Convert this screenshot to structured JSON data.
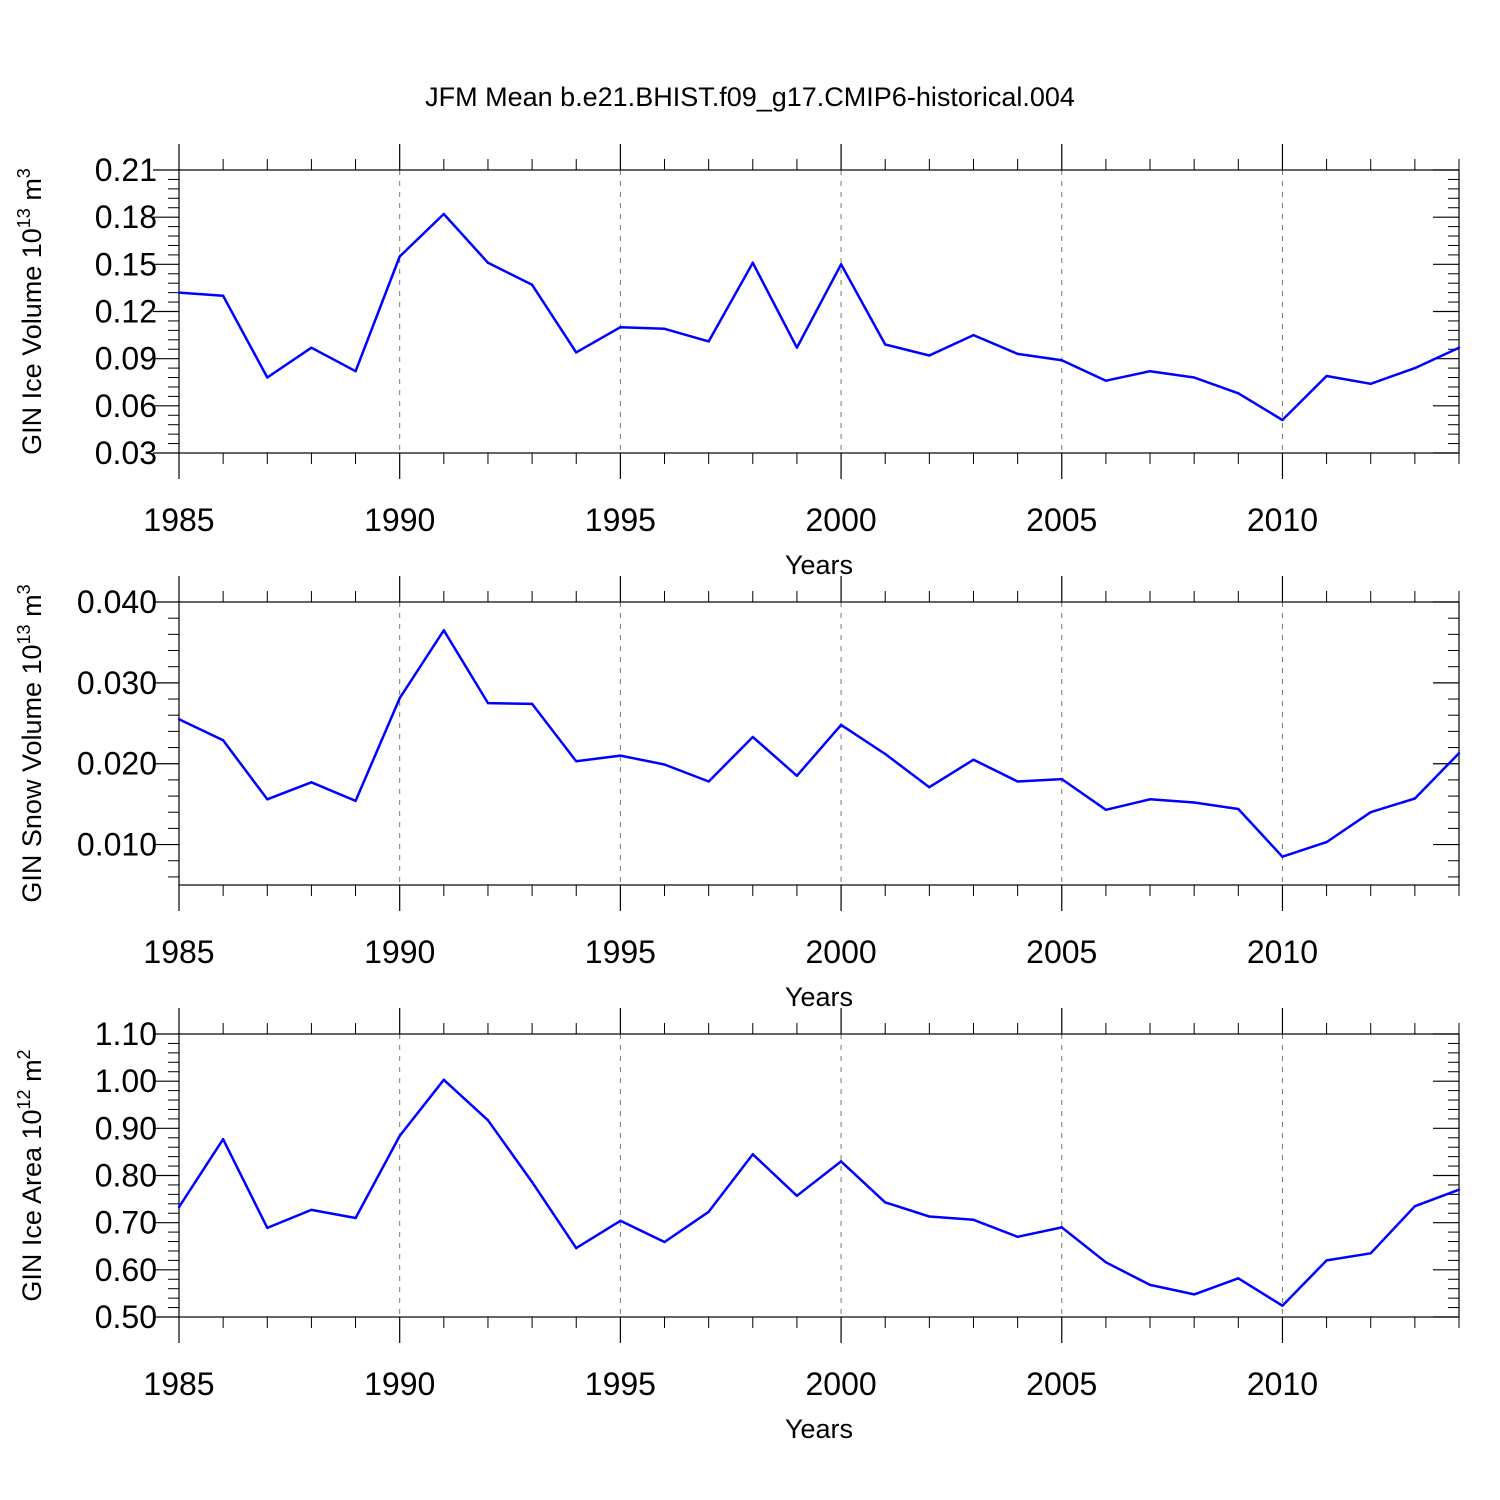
{
  "title": "JFM Mean b.e21.BHIST.f09_g17.CMIP6-historical.004",
  "colors": {
    "series": "#0000ff",
    "grid": "#777777"
  },
  "chart_data": [
    {
      "type": "line",
      "ylabel_main": "GIN Ice Volume 10",
      "ylabel_exp": "13",
      "ylabel_unit": " m",
      "ylabel_unit_exp": "3",
      "xlabel": "Years",
      "xlim": [
        1985,
        2014
      ],
      "ylim": [
        0.03,
        0.21
      ],
      "xticks": [
        1985,
        1990,
        1995,
        2000,
        2005,
        2010
      ],
      "xtick_labels": [
        "1985",
        "1990",
        "1995",
        "2000",
        "2005",
        "2010"
      ],
      "yticks": [
        0.03,
        0.06,
        0.09,
        0.12,
        0.15,
        0.18,
        0.21
      ],
      "ytick_labels": [
        "0.03",
        "0.06",
        "0.09",
        "0.12",
        "0.15",
        "0.18",
        "0.21"
      ],
      "grid_x": true,
      "x": [
        1985,
        1986,
        1987,
        1988,
        1989,
        1990,
        1991,
        1992,
        1993,
        1994,
        1995,
        1996,
        1997,
        1998,
        1999,
        2000,
        2001,
        2002,
        2003,
        2004,
        2005,
        2006,
        2007,
        2008,
        2009,
        2010,
        2011,
        2012,
        2013,
        2014
      ],
      "series": [
        {
          "name": "GIN Ice Volume",
          "values": [
            0.132,
            0.13,
            0.078,
            0.097,
            0.082,
            0.155,
            0.182,
            0.151,
            0.137,
            0.094,
            0.11,
            0.109,
            0.101,
            0.151,
            0.097,
            0.15,
            0.099,
            0.092,
            0.105,
            0.093,
            0.089,
            0.076,
            0.082,
            0.078,
            0.068,
            0.051,
            0.079,
            0.074,
            0.084,
            0.097
          ]
        }
      ]
    },
    {
      "type": "line",
      "ylabel_main": "GIN Snow Volume 10",
      "ylabel_exp": "13",
      "ylabel_unit": " m",
      "ylabel_unit_exp": "3",
      "xlabel": "Years",
      "xlim": [
        1985,
        2014
      ],
      "ylim": [
        0.005,
        0.04
      ],
      "xticks": [
        1985,
        1990,
        1995,
        2000,
        2005,
        2010
      ],
      "xtick_labels": [
        "1985",
        "1990",
        "1995",
        "2000",
        "2005",
        "2010"
      ],
      "yticks": [
        0.01,
        0.02,
        0.03,
        0.04
      ],
      "ytick_labels": [
        "0.010",
        "0.020",
        "0.030",
        "0.040"
      ],
      "grid_x": true,
      "x": [
        1985,
        1986,
        1987,
        1988,
        1989,
        1990,
        1991,
        1992,
        1993,
        1994,
        1995,
        1996,
        1997,
        1998,
        1999,
        2000,
        2001,
        2002,
        2003,
        2004,
        2005,
        2006,
        2007,
        2008,
        2009,
        2010,
        2011,
        2012,
        2013,
        2014
      ],
      "series": [
        {
          "name": "GIN Snow Volume",
          "values": [
            0.0255,
            0.0229,
            0.0156,
            0.0177,
            0.0154,
            0.0281,
            0.0365,
            0.0275,
            0.0274,
            0.0203,
            0.021,
            0.0199,
            0.0178,
            0.0233,
            0.0185,
            0.0248,
            0.0212,
            0.0171,
            0.0205,
            0.0178,
            0.0181,
            0.0143,
            0.0156,
            0.0152,
            0.0144,
            0.0085,
            0.0103,
            0.014,
            0.0157,
            0.0213
          ]
        }
      ]
    },
    {
      "type": "line",
      "ylabel_main": "GIN Ice Area 10",
      "ylabel_exp": "12",
      "ylabel_unit": " m",
      "ylabel_unit_exp": "2",
      "xlabel": "Years",
      "xlim": [
        1985,
        2014
      ],
      "ylim": [
        0.5,
        1.1
      ],
      "xticks": [
        1985,
        1990,
        1995,
        2000,
        2005,
        2010
      ],
      "xtick_labels": [
        "1985",
        "1990",
        "1995",
        "2000",
        "2005",
        "2010"
      ],
      "yticks": [
        0.5,
        0.6,
        0.7,
        0.8,
        0.9,
        1.0,
        1.1
      ],
      "ytick_labels": [
        "0.50",
        "0.60",
        "0.70",
        "0.80",
        "0.90",
        "1.00",
        "1.10"
      ],
      "grid_x": true,
      "x": [
        1985,
        1986,
        1987,
        1988,
        1989,
        1990,
        1991,
        1992,
        1993,
        1994,
        1995,
        1996,
        1997,
        1998,
        1999,
        2000,
        2001,
        2002,
        2003,
        2004,
        2005,
        2006,
        2007,
        2008,
        2009,
        2010,
        2011,
        2012,
        2013,
        2014
      ],
      "series": [
        {
          "name": "GIN Ice Area",
          "values": [
            0.733,
            0.877,
            0.689,
            0.727,
            0.71,
            0.884,
            1.003,
            0.917,
            0.786,
            0.646,
            0.704,
            0.659,
            0.723,
            0.845,
            0.757,
            0.83,
            0.743,
            0.713,
            0.706,
            0.67,
            0.69,
            0.616,
            0.568,
            0.548,
            0.582,
            0.524,
            0.62,
            0.635,
            0.735,
            0.77
          ]
        }
      ]
    }
  ]
}
